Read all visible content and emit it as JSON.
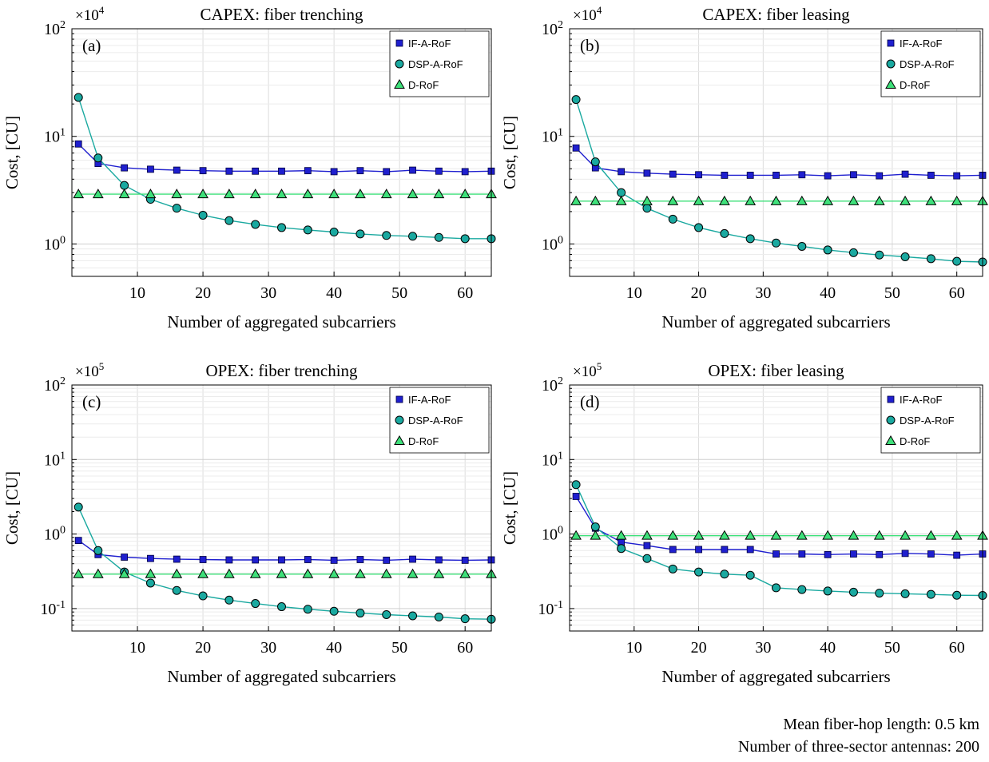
{
  "footnote": {
    "line1": "Mean fiber-hop length: 0.5 km",
    "line2": "Number of three-sector antennas: 200"
  },
  "colors": {
    "IF-A-RoF": "#1f1fcf",
    "DSP-A-RoF": "#1aa9a0",
    "D-RoF": "#3ee07a",
    "grid": "#dcdcdc"
  },
  "chart_data": [
    {
      "type": "line",
      "panel_label": "(a)",
      "title": "CAPEX: fiber trenching",
      "exponent_label": "×10",
      "exponent": "4",
      "xlabel": "Number of aggregated subcarriers",
      "ylabel": "Cost, [CU]",
      "yscale": "log",
      "xlim": [
        0,
        64
      ],
      "ylim": [
        0.5,
        100
      ],
      "xticks": [
        10,
        20,
        30,
        40,
        50,
        60
      ],
      "xtick_labels": [
        "10",
        "20",
        "30",
        "40",
        "50",
        "60"
      ],
      "yticks": [
        1,
        10,
        100
      ],
      "ytick_labels": [
        {
          "base": "10",
          "exp": "0"
        },
        {
          "base": "10",
          "exp": "1"
        },
        {
          "base": "10",
          "exp": "2"
        }
      ],
      "grid": true,
      "legend_position": "top-right",
      "x": [
        1,
        4,
        8,
        12,
        16,
        20,
        24,
        28,
        32,
        36,
        40,
        44,
        48,
        52,
        56,
        60,
        64
      ],
      "series": [
        {
          "name": "IF-A-RoF",
          "marker": "square",
          "values": [
            8.5,
            5.6,
            5.1,
            4.95,
            4.85,
            4.8,
            4.75,
            4.75,
            4.75,
            4.8,
            4.7,
            4.8,
            4.7,
            4.85,
            4.75,
            4.7,
            4.75
          ]
        },
        {
          "name": "DSP-A-RoF",
          "marker": "circle",
          "values": [
            23,
            6.3,
            3.5,
            2.6,
            2.15,
            1.85,
            1.65,
            1.52,
            1.42,
            1.35,
            1.29,
            1.24,
            1.2,
            1.18,
            1.15,
            1.12,
            1.12
          ]
        },
        {
          "name": "D-RoF",
          "marker": "triangle",
          "values": [
            2.9,
            2.9,
            2.9,
            2.9,
            2.9,
            2.9,
            2.9,
            2.9,
            2.9,
            2.9,
            2.9,
            2.9,
            2.9,
            2.9,
            2.9,
            2.9,
            2.9
          ]
        }
      ]
    },
    {
      "type": "line",
      "panel_label": "(b)",
      "title": "CAPEX: fiber leasing",
      "exponent_label": "×10",
      "exponent": "4",
      "xlabel": "Number of aggregated subcarriers",
      "ylabel": "Cost, [CU]",
      "yscale": "log",
      "xlim": [
        0,
        64
      ],
      "ylim": [
        0.5,
        100
      ],
      "xticks": [
        10,
        20,
        30,
        40,
        50,
        60
      ],
      "xtick_labels": [
        "10",
        "20",
        "30",
        "40",
        "50",
        "60"
      ],
      "yticks": [
        1,
        10,
        100
      ],
      "ytick_labels": [
        {
          "base": "10",
          "exp": "0"
        },
        {
          "base": "10",
          "exp": "1"
        },
        {
          "base": "10",
          "exp": "2"
        }
      ],
      "grid": true,
      "legend_position": "top-right",
      "x": [
        1,
        4,
        8,
        12,
        16,
        20,
        24,
        28,
        32,
        36,
        40,
        44,
        48,
        52,
        56,
        60,
        64
      ],
      "series": [
        {
          "name": "IF-A-RoF",
          "marker": "square",
          "values": [
            7.8,
            5.1,
            4.7,
            4.55,
            4.45,
            4.4,
            4.35,
            4.35,
            4.35,
            4.4,
            4.3,
            4.4,
            4.3,
            4.45,
            4.35,
            4.3,
            4.35
          ]
        },
        {
          "name": "DSP-A-RoF",
          "marker": "circle",
          "values": [
            22,
            5.8,
            3.0,
            2.15,
            1.7,
            1.42,
            1.25,
            1.12,
            1.02,
            0.95,
            0.88,
            0.83,
            0.79,
            0.76,
            0.73,
            0.69,
            0.68
          ]
        },
        {
          "name": "D-RoF",
          "marker": "triangle",
          "values": [
            2.5,
            2.5,
            2.5,
            2.5,
            2.5,
            2.5,
            2.5,
            2.5,
            2.5,
            2.5,
            2.5,
            2.5,
            2.5,
            2.5,
            2.5,
            2.5,
            2.5
          ]
        }
      ]
    },
    {
      "type": "line",
      "panel_label": "(c)",
      "title": "OPEX: fiber trenching",
      "exponent_label": "×10",
      "exponent": "5",
      "xlabel": "Number of aggregated subcarriers",
      "ylabel": "Cost, [CU]",
      "yscale": "log",
      "xlim": [
        0,
        64
      ],
      "ylim": [
        0.05,
        100
      ],
      "xticks": [
        10,
        20,
        30,
        40,
        50,
        60
      ],
      "xtick_labels": [
        "10",
        "20",
        "30",
        "40",
        "50",
        "60"
      ],
      "yticks": [
        0.1,
        1,
        10,
        100
      ],
      "ytick_labels": [
        {
          "base": "10",
          "exp": "-1"
        },
        {
          "base": "10",
          "exp": "0"
        },
        {
          "base": "10",
          "exp": "1"
        },
        {
          "base": "10",
          "exp": "2"
        }
      ],
      "grid": true,
      "legend_position": "top-right",
      "x": [
        1,
        4,
        8,
        12,
        16,
        20,
        24,
        28,
        32,
        36,
        40,
        44,
        48,
        52,
        56,
        60,
        64
      ],
      "series": [
        {
          "name": "IF-A-RoF",
          "marker": "square",
          "values": [
            0.82,
            0.53,
            0.49,
            0.47,
            0.46,
            0.455,
            0.45,
            0.45,
            0.45,
            0.455,
            0.445,
            0.455,
            0.445,
            0.46,
            0.45,
            0.445,
            0.45
          ]
        },
        {
          "name": "DSP-A-RoF",
          "marker": "circle",
          "values": [
            2.3,
            0.6,
            0.31,
            0.22,
            0.175,
            0.148,
            0.13,
            0.117,
            0.106,
            0.098,
            0.092,
            0.087,
            0.083,
            0.08,
            0.077,
            0.073,
            0.072
          ]
        },
        {
          "name": "D-RoF",
          "marker": "triangle",
          "values": [
            0.29,
            0.29,
            0.29,
            0.29,
            0.29,
            0.29,
            0.29,
            0.29,
            0.29,
            0.29,
            0.29,
            0.29,
            0.29,
            0.29,
            0.29,
            0.29,
            0.29
          ]
        }
      ]
    },
    {
      "type": "line",
      "panel_label": "(d)",
      "title": "OPEX: fiber leasing",
      "exponent_label": "×10",
      "exponent": "5",
      "xlabel": "Number of aggregated subcarriers",
      "ylabel": "Cost, [CU]",
      "yscale": "log",
      "xlim": [
        0,
        64
      ],
      "ylim": [
        0.05,
        100
      ],
      "xticks": [
        10,
        20,
        30,
        40,
        50,
        60
      ],
      "xtick_labels": [
        "10",
        "20",
        "30",
        "40",
        "50",
        "60"
      ],
      "yticks": [
        0.1,
        1,
        10,
        100
      ],
      "ytick_labels": [
        {
          "base": "10",
          "exp": "-1"
        },
        {
          "base": "10",
          "exp": "0"
        },
        {
          "base": "10",
          "exp": "1"
        },
        {
          "base": "10",
          "exp": "2"
        }
      ],
      "grid": true,
      "legend_position": "top-right",
      "x": [
        1,
        4,
        8,
        12,
        16,
        20,
        24,
        28,
        32,
        36,
        40,
        44,
        48,
        52,
        56,
        60,
        64
      ],
      "series": [
        {
          "name": "IF-A-RoF",
          "marker": "square",
          "values": [
            3.2,
            1.2,
            0.78,
            0.7,
            0.62,
            0.62,
            0.62,
            0.62,
            0.54,
            0.54,
            0.53,
            0.54,
            0.53,
            0.55,
            0.54,
            0.52,
            0.54
          ]
        },
        {
          "name": "DSP-A-RoF",
          "marker": "circle",
          "values": [
            4.6,
            1.25,
            0.64,
            0.47,
            0.34,
            0.31,
            0.29,
            0.28,
            0.19,
            0.18,
            0.172,
            0.166,
            0.161,
            0.158,
            0.155,
            0.151,
            0.15
          ]
        },
        {
          "name": "D-RoF",
          "marker": "triangle",
          "values": [
            0.95,
            0.95,
            0.95,
            0.95,
            0.95,
            0.95,
            0.95,
            0.95,
            0.95,
            0.95,
            0.95,
            0.95,
            0.95,
            0.95,
            0.95,
            0.95,
            0.95
          ]
        }
      ]
    }
  ]
}
